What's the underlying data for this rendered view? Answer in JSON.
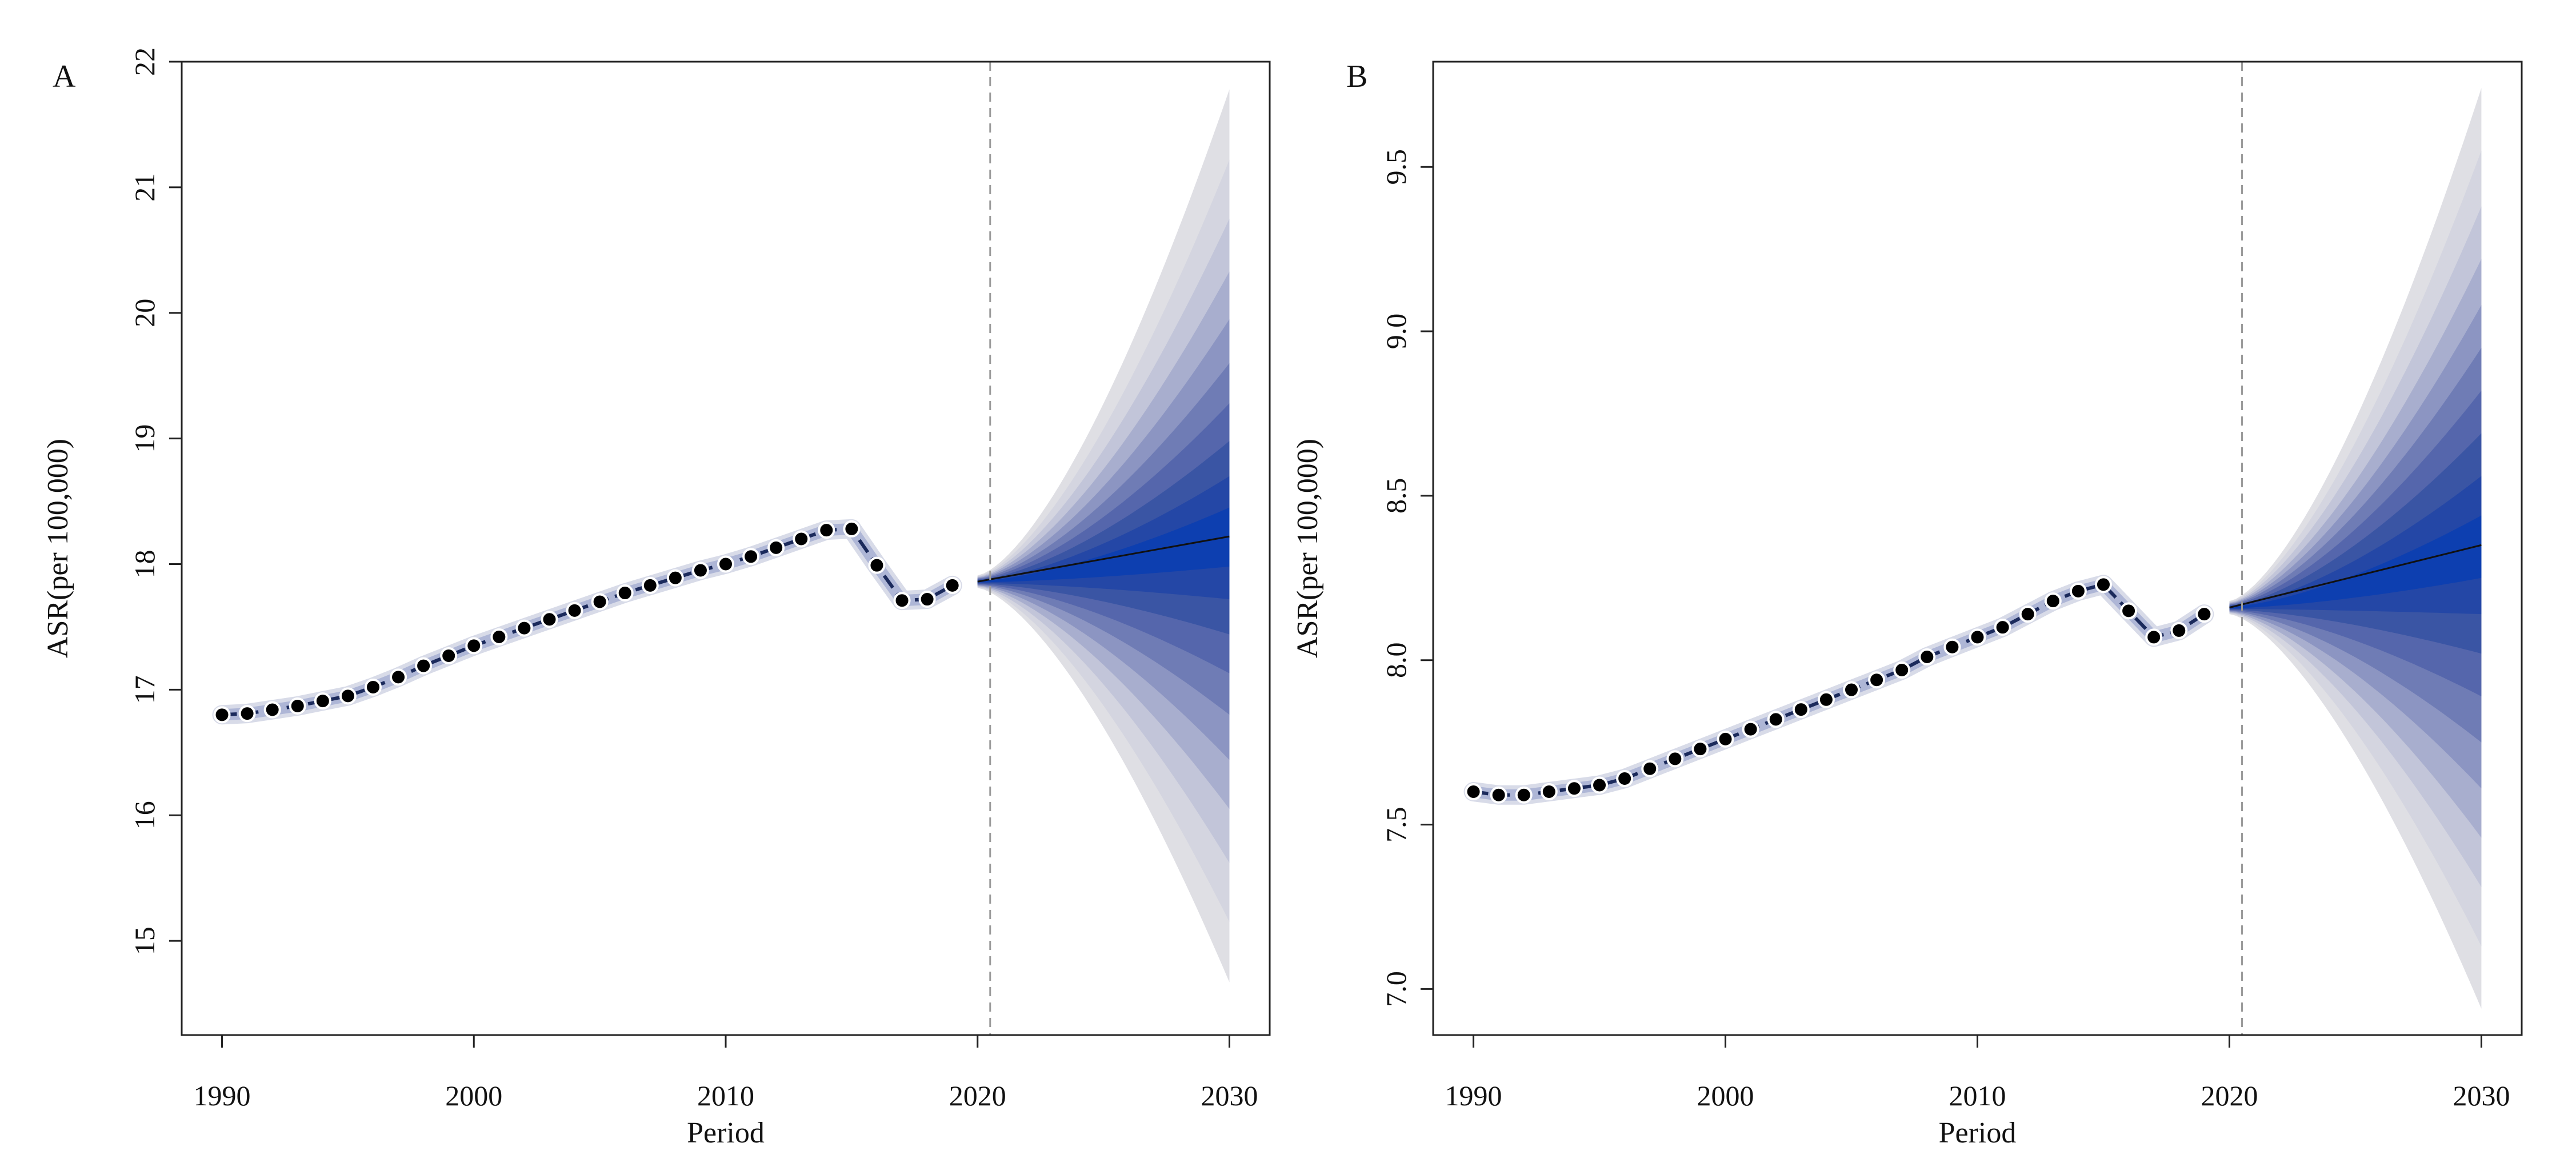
{
  "chart_data": [
    {
      "panel_label": "A",
      "type": "line",
      "xlabel": "Period",
      "ylabel": "ASR(per 100,000)",
      "xlim": [
        1988.4,
        2031.6
      ],
      "ylim": [
        14.25,
        22.0
      ],
      "xticks": [
        1990,
        2000,
        2010,
        2020,
        2030
      ],
      "yticks": [
        15,
        16,
        17,
        18,
        19,
        20,
        21,
        22
      ],
      "divider_x": 2020.5,
      "observed": {
        "x": [
          1990,
          1991,
          1992,
          1993,
          1994,
          1995,
          1996,
          1997,
          1998,
          1999,
          2000,
          2001,
          2002,
          2003,
          2004,
          2005,
          2006,
          2007,
          2008,
          2009,
          2010,
          2011,
          2012,
          2013,
          2014,
          2015,
          2016,
          2017,
          2018,
          2019
        ],
        "y": [
          16.8,
          16.81,
          16.84,
          16.87,
          16.91,
          16.95,
          17.02,
          17.1,
          17.19,
          17.27,
          17.35,
          17.42,
          17.49,
          17.56,
          17.63,
          17.7,
          17.77,
          17.83,
          17.89,
          17.95,
          18.0,
          18.06,
          18.13,
          18.2,
          18.27,
          18.28,
          17.99,
          17.71,
          17.72,
          17.83
        ]
      },
      "projection": {
        "x": [
          2020,
          2030
        ],
        "mean": [
          17.86,
          18.22
        ],
        "start_halfwidth": 0.05,
        "end_upper": [
          18.45,
          18.7,
          18.98,
          19.28,
          19.6,
          19.95,
          20.33,
          20.75,
          21.22,
          21.78
        ],
        "end_lower": [
          17.98,
          17.72,
          17.44,
          17.13,
          16.8,
          16.44,
          16.05,
          15.62,
          15.15,
          14.67
        ],
        "band_colors": [
          "#0d3fb0",
          "#2447a6",
          "#3a55a4",
          "#5566ac",
          "#6f7cb5",
          "#8c95c2",
          "#a8aece",
          "#c2c5d9",
          "#d4d5e0",
          "#dfdfe4"
        ]
      }
    },
    {
      "panel_label": "B",
      "type": "line",
      "xlabel": "Period",
      "ylabel": "ASR(per 100,000)",
      "xlim": [
        1988.4,
        2031.6
      ],
      "ylim": [
        6.86,
        9.82
      ],
      "xticks": [
        1990,
        2000,
        2010,
        2020,
        2030
      ],
      "yticks": [
        7.0,
        7.5,
        8.0,
        8.5,
        9.0,
        9.5
      ],
      "ytick_labels": [
        "7.0",
        "7.5",
        "8.0",
        "8.5",
        "9.0",
        "9.5"
      ],
      "divider_x": 2020.5,
      "observed": {
        "x": [
          1990,
          1991,
          1992,
          1993,
          1994,
          1995,
          1996,
          1997,
          1998,
          1999,
          2000,
          2001,
          2002,
          2003,
          2004,
          2005,
          2006,
          2007,
          2008,
          2009,
          2010,
          2011,
          2012,
          2013,
          2014,
          2015,
          2016,
          2017,
          2018,
          2019
        ],
        "y": [
          7.6,
          7.59,
          7.59,
          7.6,
          7.61,
          7.62,
          7.64,
          7.67,
          7.7,
          7.73,
          7.76,
          7.79,
          7.82,
          7.85,
          7.88,
          7.91,
          7.94,
          7.97,
          8.01,
          8.04,
          8.07,
          8.1,
          8.14,
          8.18,
          8.21,
          8.23,
          8.15,
          8.07,
          8.09,
          8.14
        ]
      },
      "projection": {
        "x": [
          2020,
          2030
        ],
        "mean": [
          8.16,
          8.35
        ],
        "start_halfwidth": 0.02,
        "end_upper": [
          8.44,
          8.56,
          8.69,
          8.82,
          8.95,
          9.08,
          9.22,
          9.38,
          9.55,
          9.74
        ],
        "end_lower": [
          8.25,
          8.14,
          8.02,
          7.89,
          7.75,
          7.61,
          7.46,
          7.31,
          7.13,
          6.94
        ],
        "band_colors": [
          "#0d3fb0",
          "#2447a6",
          "#3a55a4",
          "#5566ac",
          "#6f7cb5",
          "#8c95c2",
          "#a8aece",
          "#c2c5d9",
          "#d4d5e0",
          "#dfdfe4"
        ]
      }
    }
  ]
}
